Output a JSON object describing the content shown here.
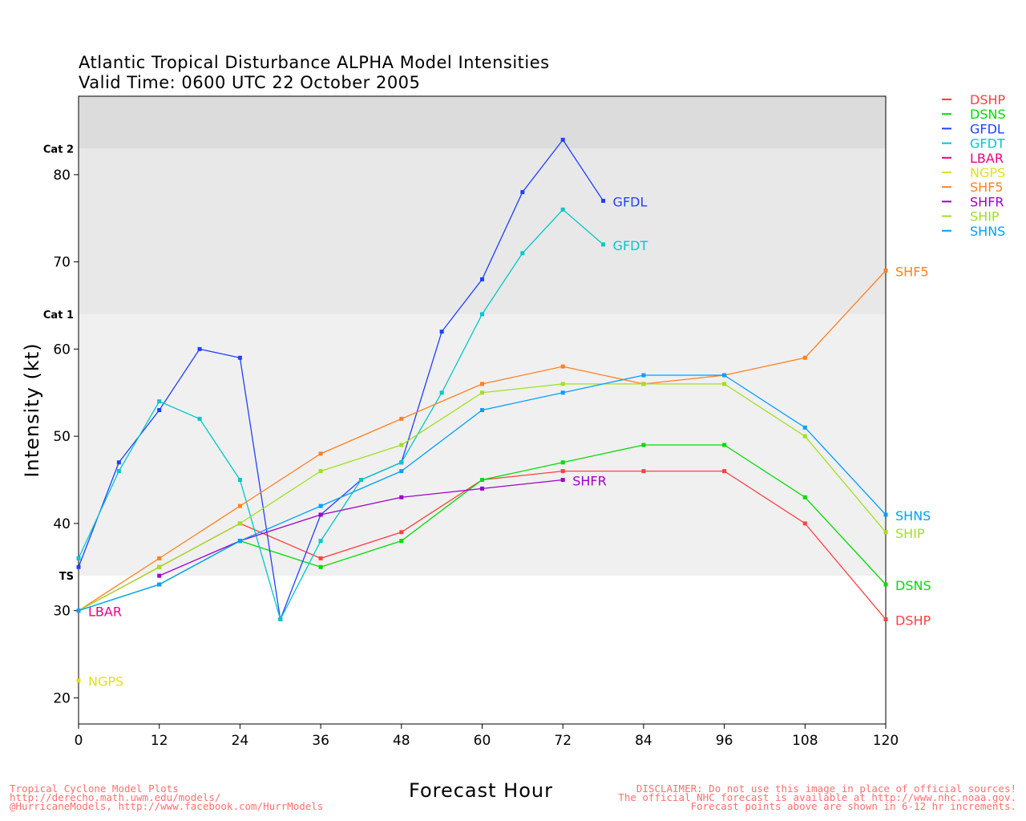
{
  "chart_data": {
    "type": "line",
    "title": "Atlantic Tropical Disturbance ALPHA Model Intensities",
    "subtitle": "Valid Time: 0600 UTC 22 October 2005",
    "xlabel": "Forecast Hour",
    "ylabel": "Intensity (kt)",
    "xlim": [
      0,
      120
    ],
    "ylim": [
      17,
      89
    ],
    "xticks": [
      0,
      12,
      24,
      36,
      48,
      60,
      72,
      84,
      96,
      108,
      120
    ],
    "yticks": [
      20,
      30,
      40,
      50,
      60,
      70,
      80
    ],
    "bands": [
      {
        "label": "TS",
        "from": 34,
        "to": 64,
        "color": "#f0f0f0"
      },
      {
        "label": "Cat 1",
        "from": 64,
        "to": 83,
        "color": "#e8e8e8"
      },
      {
        "label": "Cat 2",
        "from": 83,
        "to": 89,
        "color": "#dcdcdc"
      }
    ],
    "legend_position": "right",
    "series": [
      {
        "name": "DSHP",
        "color": "#ff4040",
        "x": [
          0,
          12,
          24,
          36,
          48,
          60,
          72,
          84,
          96,
          108,
          120
        ],
        "y": [
          30,
          35,
          40,
          36,
          39,
          45,
          46,
          46,
          46,
          40,
          29
        ]
      },
      {
        "name": "DSNS",
        "color": "#00dd00",
        "x": [
          0,
          12,
          24,
          36,
          48,
          60,
          72,
          84,
          96,
          108,
          120
        ],
        "y": [
          30,
          33,
          38,
          35,
          38,
          45,
          47,
          49,
          49,
          43,
          33
        ]
      },
      {
        "name": "GFDL",
        "color": "#2040ff",
        "x": [
          0,
          6,
          12,
          18,
          24,
          30,
          36,
          42,
          48,
          54,
          60,
          66,
          72,
          78
        ],
        "y": [
          35,
          47,
          53,
          60,
          59,
          29,
          41,
          45,
          47,
          62,
          68,
          78,
          84,
          77
        ]
      },
      {
        "name": "GFDT",
        "color": "#00c8c8",
        "x": [
          0,
          6,
          12,
          18,
          24,
          30,
          36,
          42,
          48,
          54,
          60,
          66,
          72,
          78
        ],
        "y": [
          36,
          46,
          54,
          52,
          45,
          29,
          38,
          45,
          47,
          55,
          64,
          71,
          76,
          72
        ]
      },
      {
        "name": "LBAR",
        "color": "#f00080",
        "x": [
          0
        ],
        "y": [
          30
        ]
      },
      {
        "name": "NGPS",
        "color": "#e0e020",
        "x": [
          0
        ],
        "y": [
          22
        ]
      },
      {
        "name": "SHF5",
        "color": "#ff8020",
        "x": [
          0,
          12,
          24,
          36,
          48,
          60,
          72,
          84,
          96,
          108,
          120
        ],
        "y": [
          30,
          36,
          42,
          48,
          52,
          56,
          58,
          56,
          57,
          59,
          69
        ]
      },
      {
        "name": "SHFR",
        "color": "#a000c8",
        "x": [
          12,
          24,
          36,
          48,
          60,
          72
        ],
        "y": [
          34,
          38,
          41,
          43,
          44,
          45
        ]
      },
      {
        "name": "SHIP",
        "color": "#a0e020",
        "x": [
          0,
          12,
          24,
          36,
          48,
          60,
          72,
          84,
          96,
          108,
          120
        ],
        "y": [
          30,
          35,
          40,
          46,
          49,
          55,
          56,
          56,
          56,
          50,
          39
        ]
      },
      {
        "name": "SHNS",
        "color": "#00a0ff",
        "x": [
          0,
          12,
          24,
          36,
          48,
          60,
          72,
          84,
          96,
          108,
          120
        ],
        "y": [
          30,
          33,
          38,
          42,
          46,
          53,
          55,
          57,
          57,
          51,
          41
        ]
      }
    ]
  },
  "footer": {
    "left": [
      "Tropical Cyclone Model Plots",
      "http://derecho.math.uwm.edu/models/",
      "@HurricaneModels, http://www.facebook.com/HurrModels"
    ],
    "right": [
      "DISCLAIMER: Do not use this image in place of official sources!",
      "The official NHC forecast is available at http://www.nhc.noaa.gov.",
      "Forecast points above are shown in 6-12 hr increments."
    ]
  }
}
